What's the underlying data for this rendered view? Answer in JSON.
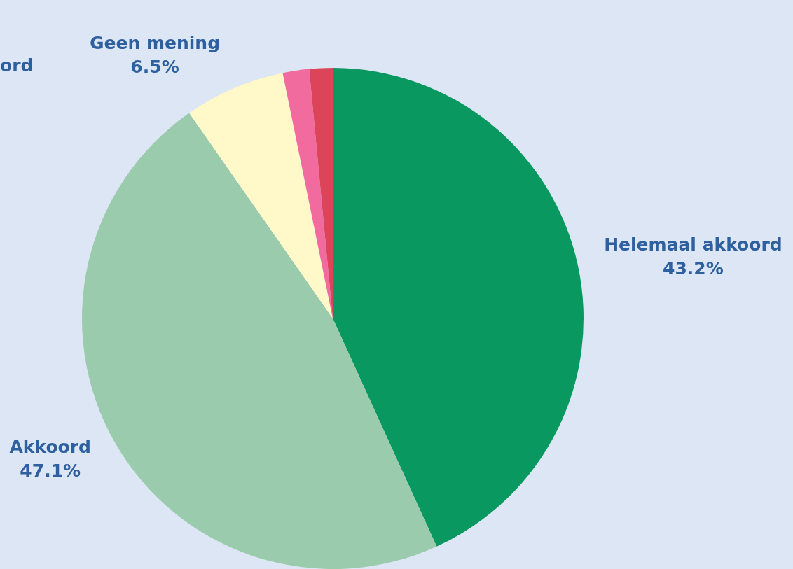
{
  "chart_data": {
    "type": "pie",
    "categories": [
      "Helemaal akkoord",
      "Akkoord",
      "Geen mening",
      null,
      null
    ],
    "values": [
      43.2,
      47.1,
      6.5,
      1.7,
      1.5
    ],
    "colors": [
      "#09985f",
      "#9bcbad",
      "#fff8c8",
      "#f26b9e",
      "#dc4459"
    ],
    "value_labels": [
      "43.2%",
      "47.1%",
      "6.5%",
      null,
      null
    ],
    "annotations": [
      "ord"
    ],
    "legend": false
  }
}
